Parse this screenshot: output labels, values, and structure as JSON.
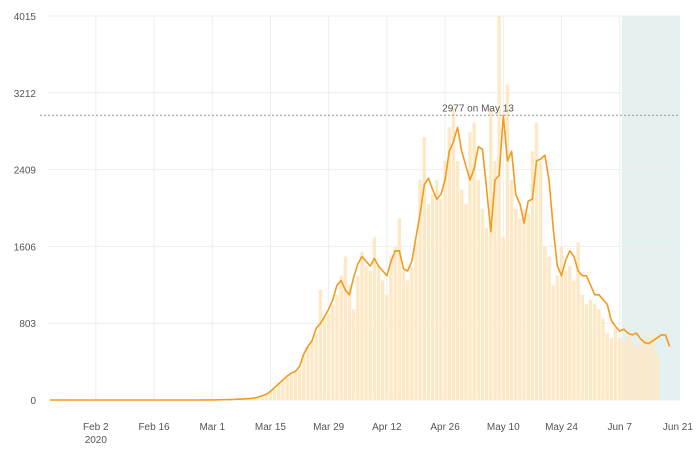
{
  "chart_data": {
    "type": "bar",
    "x_start": "2020-01-22",
    "x_end": "2020-06-21",
    "ylim": [
      0,
      4015
    ],
    "yticks": [
      "0",
      "803",
      "1606",
      "2409",
      "3212",
      "4015"
    ],
    "xticks": [
      "Feb 2",
      "Feb 16",
      "Mar 1",
      "Mar 15",
      "Mar 29",
      "Apr 12",
      "Apr 26",
      "May 10",
      "May 24",
      "Jun 7",
      "Jun 21"
    ],
    "xticks_sub": [
      "2020",
      "",
      "",
      "",
      "",
      "",
      "",
      "",
      "",
      "",
      ""
    ],
    "xtick_dates": [
      "2020-02-02",
      "2020-02-16",
      "2020-03-01",
      "2020-03-15",
      "2020-03-29",
      "2020-04-12",
      "2020-04-26",
      "2020-05-10",
      "2020-05-24",
      "2020-06-07",
      "2020-06-21"
    ],
    "shaded_from": "2020-06-08",
    "reference": {
      "value": 2977,
      "label": "2977 on May 13"
    },
    "colors": {
      "bar": "#fde9c6",
      "line": "#f29b1e",
      "shade": "#e4f1f0",
      "ref": "#999999",
      "grid": "#eeeeee"
    },
    "series": [
      {
        "type": "bar",
        "start": "2020-01-22",
        "values": [
          0,
          0,
          0,
          0,
          0,
          0,
          0,
          0,
          0,
          0,
          0,
          0,
          0,
          0,
          0,
          0,
          0,
          0,
          0,
          0,
          0,
          0,
          0,
          0,
          0,
          0,
          0,
          0,
          0,
          0,
          0,
          0,
          0,
          0,
          0,
          0,
          0,
          1,
          0,
          1,
          1,
          2,
          3,
          4,
          5,
          6,
          8,
          10,
          14,
          18,
          25,
          40,
          55,
          80,
          120,
          160,
          200,
          240,
          260,
          300,
          320,
          480,
          560,
          620,
          700,
          1150,
          880,
          900,
          1000,
          1100,
          1300,
          1500,
          1200,
          950,
          1300,
          1550,
          1400,
          1350,
          1700,
          1400,
          1250,
          1100,
          1500,
          1600,
          1900,
          1350,
          1250,
          1400,
          1650,
          2300,
          2750,
          2050,
          2150,
          2300,
          2100,
          2500,
          2850,
          3050,
          2500,
          2200,
          2050,
          2800,
          2900,
          2300,
          2000,
          1800,
          3050,
          2500,
          4015,
          1700,
          3300,
          2300,
          2000,
          1900,
          2000,
          1950,
          2600,
          2900,
          2500,
          1600,
          1500,
          1200,
          1300,
          1600,
          1350,
          1400,
          1250,
          1650,
          1100,
          1000,
          1050,
          1000,
          950,
          850,
          700,
          650,
          750,
          650,
          600,
          700,
          620,
          550,
          580,
          640,
          650,
          700,
          480
        ]
      },
      {
        "type": "line",
        "start": "2020-01-22",
        "values": [
          0,
          0,
          0,
          0,
          0,
          0,
          0,
          0,
          0,
          0,
          0,
          0,
          0,
          0,
          0,
          0,
          0,
          0,
          0,
          0,
          0,
          0,
          0,
          0,
          0,
          0,
          0,
          0,
          0,
          0,
          0,
          0,
          0,
          0,
          0,
          0,
          0,
          1,
          1,
          1,
          2,
          3,
          4,
          5,
          6,
          8,
          10,
          12,
          15,
          20,
          30,
          45,
          60,
          90,
          130,
          170,
          210,
          250,
          280,
          300,
          350,
          480,
          560,
          620,
          750,
          800,
          870,
          950,
          1050,
          1200,
          1250,
          1150,
          1100,
          1280,
          1420,
          1500,
          1450,
          1400,
          1480,
          1400,
          1350,
          1300,
          1450,
          1560,
          1560,
          1370,
          1350,
          1450,
          1700,
          1950,
          2250,
          2320,
          2200,
          2100,
          2150,
          2300,
          2600,
          2700,
          2850,
          2600,
          2450,
          2300,
          2420,
          2650,
          2620,
          2200,
          1760,
          2300,
          2350,
          2977,
          2500,
          2600,
          2150,
          2050,
          1850,
          2080,
          2100,
          2500,
          2520,
          2560,
          2300,
          1800,
          1400,
          1300,
          1460,
          1560,
          1500,
          1350,
          1300,
          1300,
          1200,
          1100,
          1100,
          1050,
          1000,
          830,
          770,
          720,
          740,
          700,
          680,
          700,
          640,
          600,
          590,
          620,
          650,
          680,
          680,
          560
        ]
      }
    ]
  }
}
